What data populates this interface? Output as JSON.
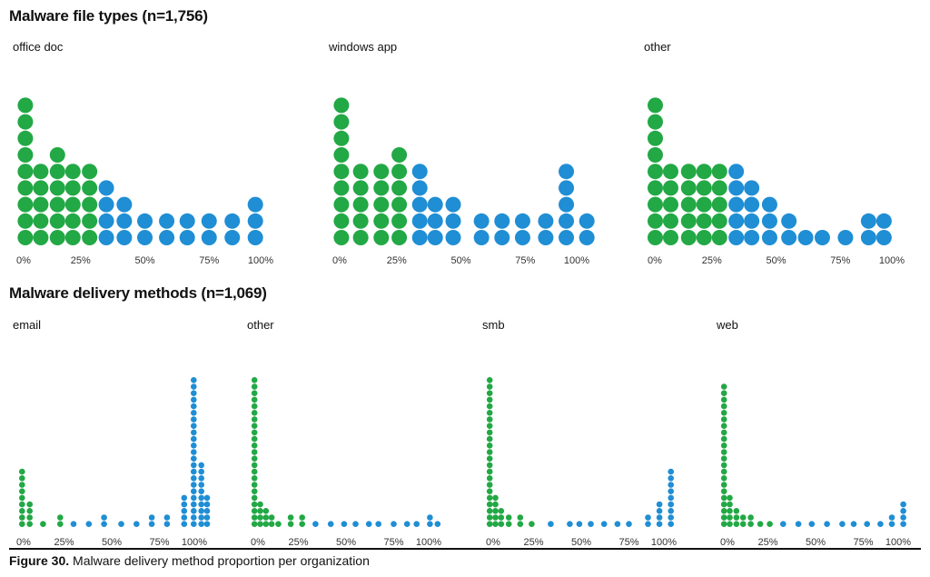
{
  "caption": {
    "label": "Figure 30.",
    "text": "Malware delivery method proportion per organization"
  },
  "colors": {
    "green": "#22a845",
    "blue": "#1f8ed4"
  },
  "chart_data": [
    {
      "section": "Malware file types (n=1,756)",
      "type": "dot histogram",
      "ticks": [
        "0%",
        "25%",
        "50%",
        "75%",
        "100%"
      ],
      "xlim": [
        0,
        1
      ],
      "panels": [
        {
          "name": "office doc",
          "bins": [
            0.035,
            0.095,
            0.16,
            0.22,
            0.285,
            0.35,
            0.42,
            0.5,
            0.585,
            0.665,
            0.75,
            0.84,
            0.93
          ],
          "counts": [
            9,
            5,
            6,
            5,
            5,
            4,
            3,
            2,
            2,
            2,
            2,
            2,
            3
          ]
        },
        {
          "name": "windows app",
          "bins": [
            0.035,
            0.11,
            0.19,
            0.26,
            0.34,
            0.4,
            0.47,
            0.58,
            0.66,
            0.74,
            0.83,
            0.91,
            0.99
          ],
          "counts": [
            9,
            5,
            5,
            6,
            5,
            3,
            3,
            2,
            2,
            2,
            2,
            5,
            2
          ]
        },
        {
          "name": "other",
          "bins": [
            0.03,
            0.09,
            0.16,
            0.22,
            0.28,
            0.345,
            0.405,
            0.475,
            0.55,
            0.615,
            0.68,
            0.77,
            0.86,
            0.92
          ],
          "counts": [
            9,
            5,
            5,
            5,
            5,
            5,
            4,
            3,
            2,
            1,
            1,
            1,
            2,
            2
          ]
        }
      ]
    },
    {
      "section": "Malware delivery methods (n=1,069)",
      "type": "dot histogram",
      "ticks": [
        "0%",
        "25%",
        "50%",
        "75%",
        "100%"
      ],
      "xlim": [
        0,
        1
      ],
      "panels": [
        {
          "name": "email",
          "bins": [
            0.03,
            0.07,
            0.14,
            0.23,
            0.3,
            0.38,
            0.46,
            0.55,
            0.63,
            0.71,
            0.79,
            0.88,
            0.93,
            0.97,
            1.0
          ],
          "counts": [
            9,
            4,
            1,
            2,
            1,
            1,
            2,
            1,
            1,
            2,
            2,
            5,
            23,
            10,
            5
          ]
        },
        {
          "name": "other",
          "bins": [
            0.02,
            0.05,
            0.08,
            0.11,
            0.145,
            0.21,
            0.27,
            0.34,
            0.42,
            0.49,
            0.55,
            0.62,
            0.67,
            0.75,
            0.82,
            0.87,
            0.94,
            0.98
          ],
          "counts": [
            23,
            4,
            3,
            2,
            1,
            2,
            2,
            1,
            1,
            1,
            1,
            1,
            1,
            1,
            1,
            1,
            2,
            1
          ]
        },
        {
          "name": "smb",
          "bins": [
            0.02,
            0.05,
            0.08,
            0.12,
            0.18,
            0.24,
            0.34,
            0.44,
            0.49,
            0.55,
            0.62,
            0.69,
            0.75,
            0.85,
            0.91,
            0.97
          ],
          "counts": [
            23,
            5,
            3,
            2,
            2,
            1,
            1,
            1,
            1,
            1,
            1,
            1,
            1,
            2,
            4,
            9
          ]
        },
        {
          "name": "web",
          "bins": [
            0.02,
            0.05,
            0.085,
            0.12,
            0.16,
            0.21,
            0.26,
            0.33,
            0.41,
            0.48,
            0.56,
            0.64,
            0.7,
            0.77,
            0.84,
            0.9,
            0.96
          ],
          "counts": [
            22,
            5,
            3,
            2,
            2,
            1,
            1,
            1,
            1,
            1,
            1,
            1,
            1,
            1,
            1,
            2,
            4
          ]
        }
      ]
    }
  ]
}
